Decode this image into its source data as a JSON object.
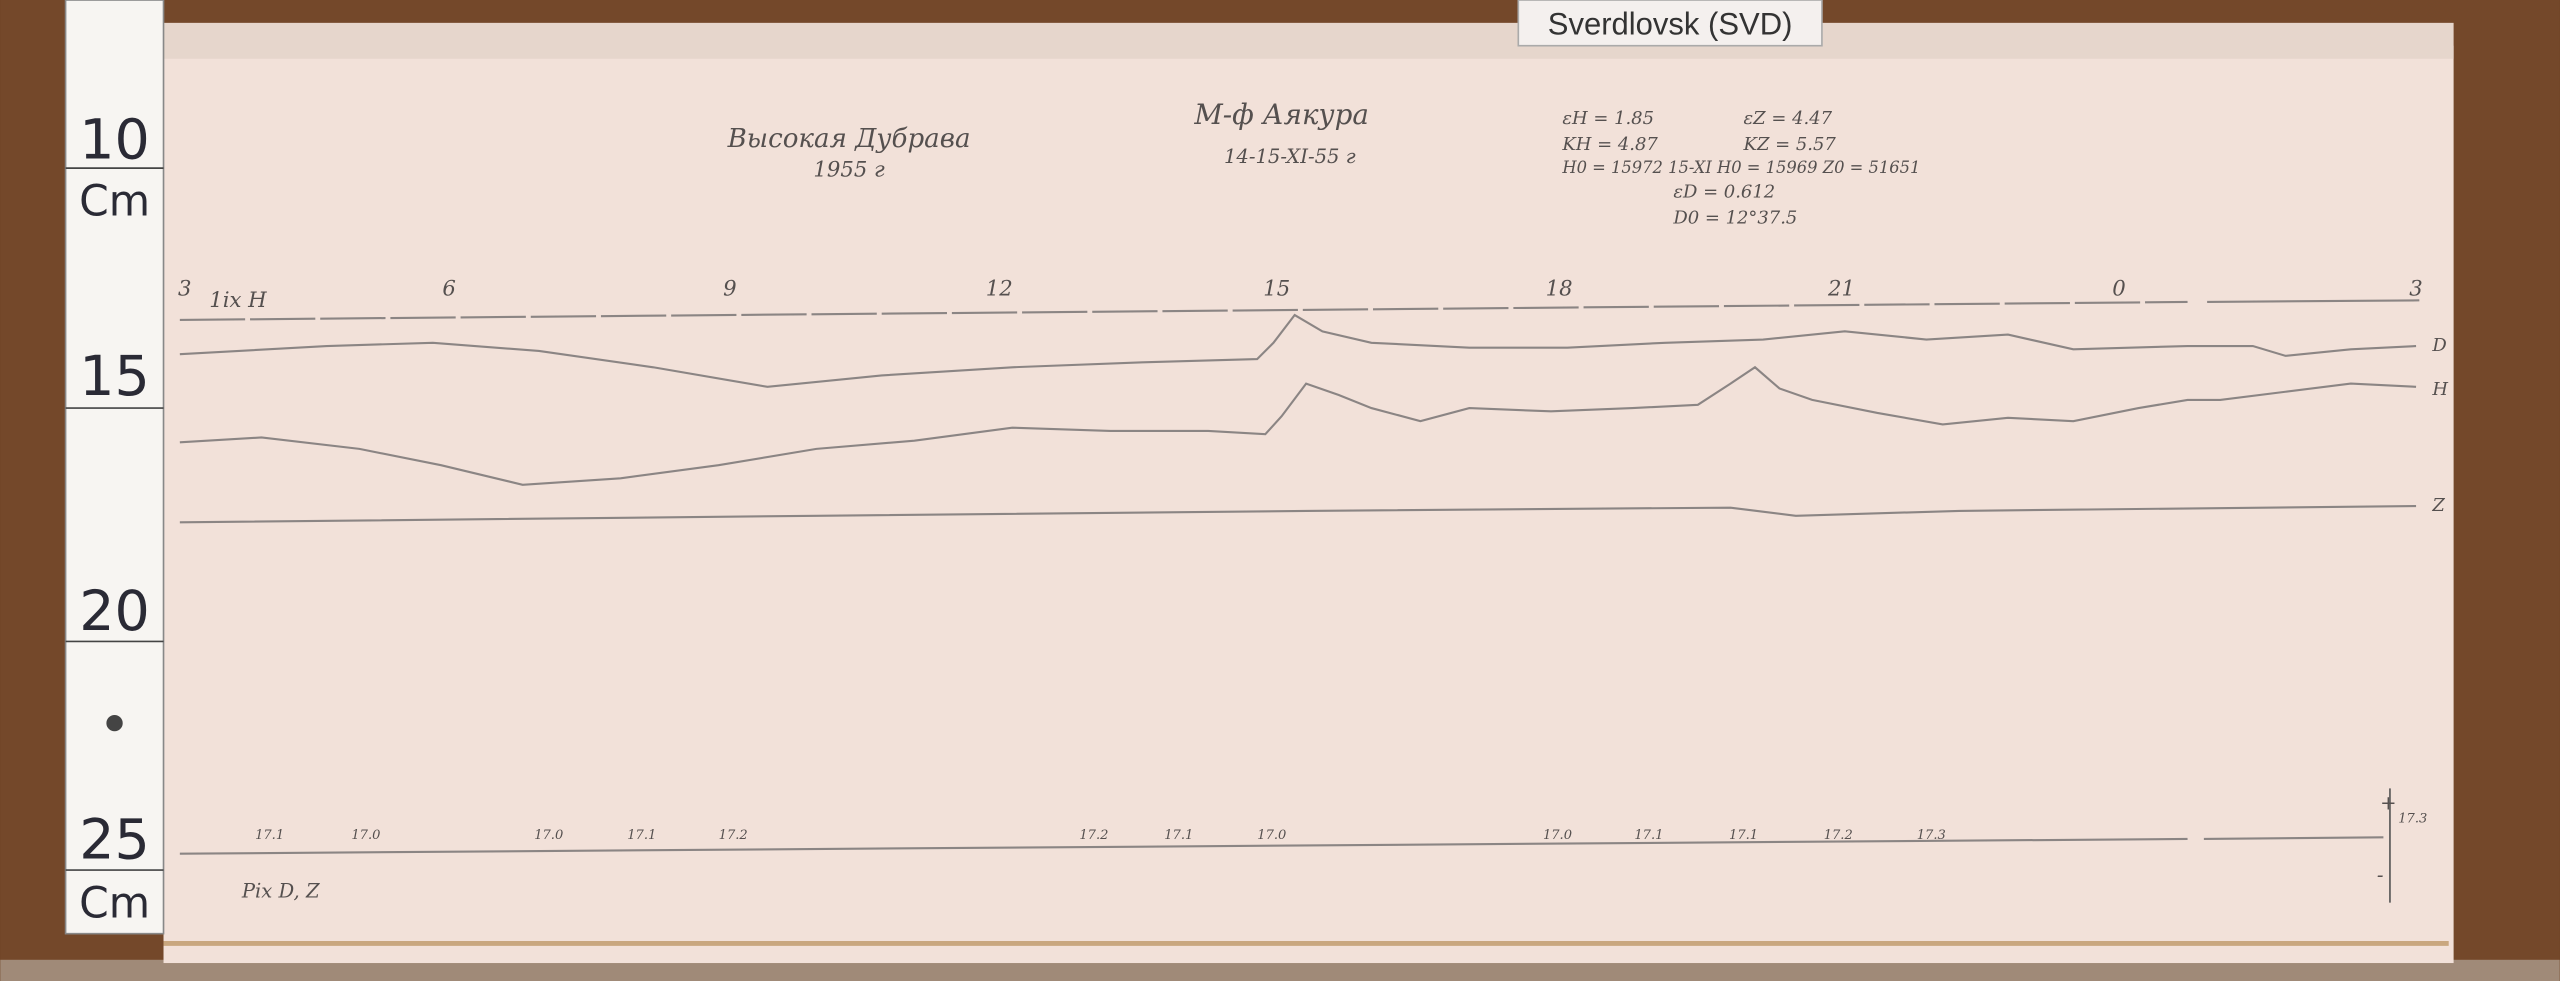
{
  "header": {
    "label": "Sverdlovsk (SVD)"
  },
  "ruler": [
    "10",
    "Cm",
    "15",
    "20",
    "25",
    "Cm"
  ],
  "sheet": {
    "place": "Высокая Дубрава",
    "year": "1955 г",
    "instrument": "М-ф Аякура",
    "date": "14-15-XI-55 г",
    "constants": [
      "εH = 1.85",
      "εZ = 4.47",
      "KH = 4.87",
      "KZ = 5.57",
      "H0 = 15972 15-XI H0 = 15969 Z0 = 51651",
      "εD = 0.612",
      "D0 = 12°37.5"
    ],
    "hours": [
      "3",
      "6",
      "9",
      "12",
      "15",
      "18",
      "21",
      "0",
      "3"
    ],
    "upper_note": "1ix H",
    "traces": [
      "D",
      "H",
      "Z"
    ],
    "base_marks": [
      "17.1",
      "17.0",
      "17.0",
      "17.1",
      "17.2",
      "17.2",
      "17.1",
      "17.0",
      "17.0",
      "17.1",
      "17.1",
      "17.2",
      "17.3",
      "17.3"
    ],
    "lower_note": "Pix D, Z",
    "scale_marks": [
      "+",
      "-"
    ]
  }
}
